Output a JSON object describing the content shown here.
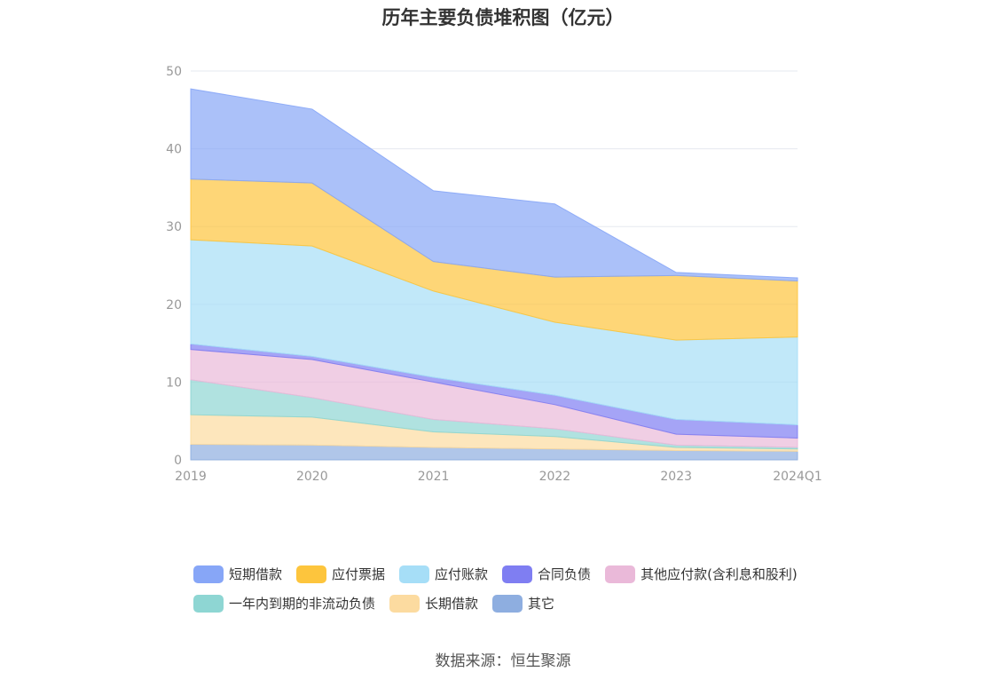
{
  "chart_data": {
    "type": "area",
    "stacked": true,
    "title": "历年主要负债堆积图（亿元）",
    "categories": [
      "2019",
      "2020",
      "2021",
      "2022",
      "2023",
      "2024Q1"
    ],
    "ylim": [
      0,
      50
    ],
    "yticks": [
      0,
      10,
      20,
      30,
      40,
      50
    ],
    "grid": true,
    "legend_position": "bottom",
    "series": [
      {
        "name": "其它",
        "color": "#8eaee0",
        "values": [
          2.0,
          1.9,
          1.6,
          1.4,
          1.2,
          1.1
        ]
      },
      {
        "name": "长期借款",
        "color": "#fcdba0",
        "values": [
          3.8,
          3.6,
          2.0,
          1.6,
          0.4,
          0.3
        ]
      },
      {
        "name": "一年内到期的非流动负债",
        "color": "#8ed6d3",
        "values": [
          4.5,
          2.5,
          1.6,
          1.0,
          0.3,
          0.2
        ]
      },
      {
        "name": "其他应付款(含利息和股利)",
        "color": "#eab9d9",
        "values": [
          3.9,
          4.9,
          4.8,
          3.1,
          1.4,
          1.2
        ]
      },
      {
        "name": "合同负债",
        "color": "#7f7ef2",
        "values": [
          0.7,
          0.4,
          0.6,
          1.2,
          1.9,
          1.7
        ]
      },
      {
        "name": "应付账款",
        "color": "#a6def7",
        "values": [
          13.4,
          14.2,
          11.1,
          9.4,
          10.2,
          11.3
        ]
      },
      {
        "name": "应付票据",
        "color": "#fdc53d",
        "values": [
          7.8,
          8.1,
          3.8,
          5.8,
          8.3,
          7.2
        ]
      },
      {
        "name": "短期借款",
        "color": "#87a6f7",
        "values": [
          11.6,
          9.5,
          9.1,
          9.4,
          0.4,
          0.4
        ]
      }
    ]
  },
  "legend": {
    "rows": [
      [
        {
          "label": "短期借款",
          "color": "#87a6f7"
        },
        {
          "label": "应付票据",
          "color": "#fdc53d"
        },
        {
          "label": "应付账款",
          "color": "#a6def7"
        },
        {
          "label": "合同负债",
          "color": "#7f7ef2"
        },
        {
          "label": "其他应付款(含利息和股利)",
          "color": "#eab9d9"
        }
      ],
      [
        {
          "label": "一年内到期的非流动负债",
          "color": "#8ed6d3"
        },
        {
          "label": "长期借款",
          "color": "#fcdba0"
        },
        {
          "label": "其它",
          "color": "#8eaee0"
        }
      ]
    ]
  },
  "source": "数据来源：恒生聚源"
}
